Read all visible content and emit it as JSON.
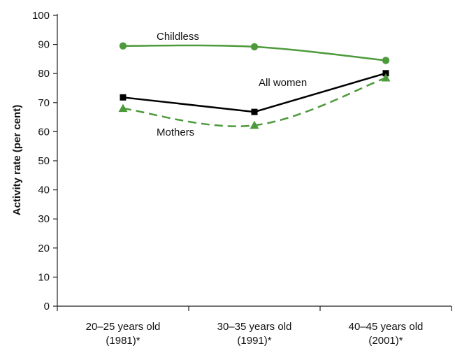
{
  "chart_data": {
    "type": "line",
    "title": "",
    "xlabel": "",
    "ylabel": "Activity rate (per cent)",
    "ylim": [
      0,
      100
    ],
    "yticks": [
      0,
      10,
      20,
      30,
      40,
      50,
      60,
      70,
      80,
      90,
      100
    ],
    "grid": false,
    "legend": "none (series labelled directly on chart)",
    "categories": [
      {
        "line1": "20–25 years old",
        "line2": "(1981)*"
      },
      {
        "line1": "30–35 years old",
        "line2": "(1991)*"
      },
      {
        "line1": "40–45 years old",
        "line2": "(2001)*"
      }
    ],
    "series": [
      {
        "name": "Childless",
        "values": [
          89.5,
          89.2,
          84.5
        ],
        "color": "#4d9a3a",
        "line_style": "solid",
        "marker": "circle"
      },
      {
        "name": "All women",
        "values": [
          71.8,
          66.8,
          80.1
        ],
        "color": "#000000",
        "line_style": "solid",
        "marker": "square"
      },
      {
        "name": "Mothers",
        "values": [
          68.0,
          62.2,
          78.5
        ],
        "color": "#4d9a3a",
        "line_style": "dashed",
        "marker": "triangle"
      }
    ]
  }
}
